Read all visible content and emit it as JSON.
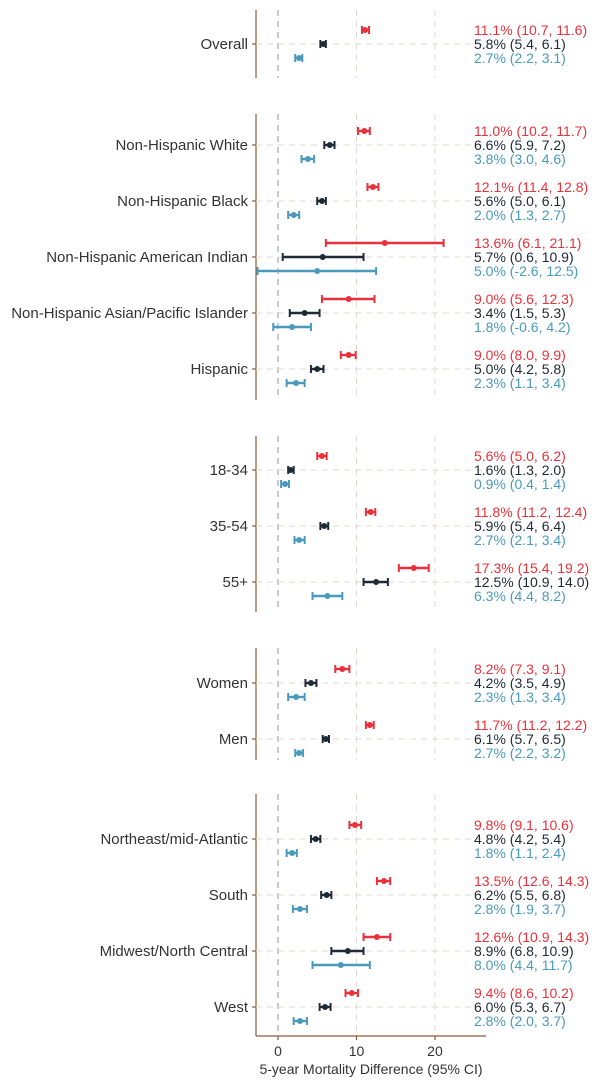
{
  "chart_data": {
    "type": "forest",
    "xlabel": "5-year Mortality Difference (95% CI)",
    "xlim": [
      -2.8,
      26.5
    ],
    "x_ticks": [
      0,
      10,
      20
    ],
    "reference_line": 0,
    "grid": true,
    "colors": {
      "red": "#e8313a",
      "dark": "#1e2a35",
      "blue": "#4a9abb"
    },
    "series_order": [
      "red",
      "dark",
      "blue"
    ],
    "panels": [
      {
        "rows": [
          {
            "label": "Overall",
            "estimates": [
              {
                "series": "red",
                "est": 11.1,
                "lo": 10.7,
                "hi": 11.6,
                "text": "11.1% (10.7, 11.6)"
              },
              {
                "series": "dark",
                "est": 5.8,
                "lo": 5.4,
                "hi": 6.1,
                "text": "5.8% (5.4, 6.1)"
              },
              {
                "series": "blue",
                "est": 2.7,
                "lo": 2.2,
                "hi": 3.1,
                "text": "2.7% (2.2, 3.1)"
              }
            ]
          }
        ]
      },
      {
        "rows": [
          {
            "label": "Non-Hispanic White",
            "estimates": [
              {
                "series": "red",
                "est": 11.0,
                "lo": 10.2,
                "hi": 11.7,
                "text": "11.0% (10.2, 11.7)"
              },
              {
                "series": "dark",
                "est": 6.6,
                "lo": 5.9,
                "hi": 7.2,
                "text": "6.6% (5.9, 7.2)"
              },
              {
                "series": "blue",
                "est": 3.8,
                "lo": 3.0,
                "hi": 4.6,
                "text": "3.8% (3.0, 4.6)"
              }
            ]
          },
          {
            "label": "Non-Hispanic Black",
            "estimates": [
              {
                "series": "red",
                "est": 12.1,
                "lo": 11.4,
                "hi": 12.8,
                "text": "12.1% (11.4, 12.8)"
              },
              {
                "series": "dark",
                "est": 5.6,
                "lo": 5.0,
                "hi": 6.1,
                "text": "5.6% (5.0, 6.1)"
              },
              {
                "series": "blue",
                "est": 2.0,
                "lo": 1.3,
                "hi": 2.7,
                "text": "2.0% (1.3, 2.7)"
              }
            ]
          },
          {
            "label": "Non-Hispanic American Indian",
            "estimates": [
              {
                "series": "red",
                "est": 13.6,
                "lo": 6.1,
                "hi": 21.1,
                "text": "13.6% (6.1, 21.1)"
              },
              {
                "series": "dark",
                "est": 5.7,
                "lo": 0.6,
                "hi": 10.9,
                "text": "5.7% (0.6, 10.9)"
              },
              {
                "series": "blue",
                "est": 5.0,
                "lo": -2.6,
                "hi": 12.5,
                "text": "5.0% (-2.6, 12.5)"
              }
            ]
          },
          {
            "label": "Non-Hispanic Asian/Pacific Islander",
            "estimates": [
              {
                "series": "red",
                "est": 9.0,
                "lo": 5.6,
                "hi": 12.3,
                "text": "9.0% (5.6, 12.3)"
              },
              {
                "series": "dark",
                "est": 3.4,
                "lo": 1.5,
                "hi": 5.3,
                "text": "3.4% (1.5, 5.3)"
              },
              {
                "series": "blue",
                "est": 1.8,
                "lo": -0.6,
                "hi": 4.2,
                "text": "1.8% (-0.6, 4.2)"
              }
            ]
          },
          {
            "label": "Hispanic",
            "estimates": [
              {
                "series": "red",
                "est": 9.0,
                "lo": 8.0,
                "hi": 9.9,
                "text": "9.0% (8.0, 9.9)"
              },
              {
                "series": "dark",
                "est": 5.0,
                "lo": 4.2,
                "hi": 5.8,
                "text": "5.0% (4.2, 5.8)"
              },
              {
                "series": "blue",
                "est": 2.3,
                "lo": 1.1,
                "hi": 3.4,
                "text": "2.3% (1.1, 3.4)"
              }
            ]
          }
        ]
      },
      {
        "rows": [
          {
            "label": "18-34",
            "estimates": [
              {
                "series": "red",
                "est": 5.6,
                "lo": 5.0,
                "hi": 6.2,
                "text": "5.6% (5.0, 6.2)"
              },
              {
                "series": "dark",
                "est": 1.6,
                "lo": 1.3,
                "hi": 2.0,
                "text": "1.6% (1.3, 2.0)"
              },
              {
                "series": "blue",
                "est": 0.9,
                "lo": 0.4,
                "hi": 1.4,
                "text": "0.9% (0.4, 1.4)"
              }
            ]
          },
          {
            "label": "35-54",
            "estimates": [
              {
                "series": "red",
                "est": 11.8,
                "lo": 11.2,
                "hi": 12.4,
                "text": "11.8% (11.2, 12.4)"
              },
              {
                "series": "dark",
                "est": 5.9,
                "lo": 5.4,
                "hi": 6.4,
                "text": "5.9% (5.4, 6.4)"
              },
              {
                "series": "blue",
                "est": 2.7,
                "lo": 2.1,
                "hi": 3.4,
                "text": "2.7% (2.1, 3.4)"
              }
            ]
          },
          {
            "label": "55+",
            "estimates": [
              {
                "series": "red",
                "est": 17.3,
                "lo": 15.4,
                "hi": 19.2,
                "text": "17.3% (15.4, 19.2)"
              },
              {
                "series": "dark",
                "est": 12.5,
                "lo": 10.9,
                "hi": 14.0,
                "text": "12.5% (10.9, 14.0)"
              },
              {
                "series": "blue",
                "est": 6.3,
                "lo": 4.4,
                "hi": 8.2,
                "text": "6.3% (4.4, 8.2)"
              }
            ]
          }
        ]
      },
      {
        "rows": [
          {
            "label": "Women",
            "estimates": [
              {
                "series": "red",
                "est": 8.2,
                "lo": 7.3,
                "hi": 9.1,
                "text": "8.2% (7.3, 9.1)"
              },
              {
                "series": "dark",
                "est": 4.2,
                "lo": 3.5,
                "hi": 4.9,
                "text": "4.2% (3.5, 4.9)"
              },
              {
                "series": "blue",
                "est": 2.3,
                "lo": 1.3,
                "hi": 3.4,
                "text": "2.3% (1.3, 3.4)"
              }
            ]
          },
          {
            "label": "Men",
            "estimates": [
              {
                "series": "red",
                "est": 11.7,
                "lo": 11.2,
                "hi": 12.2,
                "text": "11.7% (11.2, 12.2)"
              },
              {
                "series": "dark",
                "est": 6.1,
                "lo": 5.7,
                "hi": 6.5,
                "text": "6.1% (5.7, 6.5)"
              },
              {
                "series": "blue",
                "est": 2.7,
                "lo": 2.2,
                "hi": 3.2,
                "text": "2.7% (2.2, 3.2)"
              }
            ]
          }
        ]
      },
      {
        "rows": [
          {
            "label": "Northeast/mid-Atlantic",
            "estimates": [
              {
                "series": "red",
                "est": 9.8,
                "lo": 9.1,
                "hi": 10.6,
                "text": "9.8% (9.1, 10.6)"
              },
              {
                "series": "dark",
                "est": 4.8,
                "lo": 4.2,
                "hi": 5.4,
                "text": "4.8% (4.2, 5.4)"
              },
              {
                "series": "blue",
                "est": 1.8,
                "lo": 1.1,
                "hi": 2.4,
                "text": "1.8% (1.1, 2.4)"
              }
            ]
          },
          {
            "label": "South",
            "estimates": [
              {
                "series": "red",
                "est": 13.5,
                "lo": 12.6,
                "hi": 14.3,
                "text": "13.5% (12.6, 14.3)"
              },
              {
                "series": "dark",
                "est": 6.2,
                "lo": 5.5,
                "hi": 6.8,
                "text": "6.2% (5.5, 6.8)"
              },
              {
                "series": "blue",
                "est": 2.8,
                "lo": 1.9,
                "hi": 3.7,
                "text": "2.8% (1.9, 3.7)"
              }
            ]
          },
          {
            "label": "Midwest/North Central",
            "estimates": [
              {
                "series": "red",
                "est": 12.6,
                "lo": 10.9,
                "hi": 14.3,
                "text": "12.6% (10.9, 14.3)"
              },
              {
                "series": "dark",
                "est": 8.9,
                "lo": 6.8,
                "hi": 10.9,
                "text": "8.9% (6.8, 10.9)"
              },
              {
                "series": "blue",
                "est": 8.0,
                "lo": 4.4,
                "hi": 11.7,
                "text": "8.0% (4.4, 11.7)"
              }
            ]
          },
          {
            "label": "West",
            "estimates": [
              {
                "series": "red",
                "est": 9.4,
                "lo": 8.6,
                "hi": 10.2,
                "text": "9.4% (8.6, 10.2)"
              },
              {
                "series": "dark",
                "est": 6.0,
                "lo": 5.3,
                "hi": 6.7,
                "text": "6.0% (5.3, 6.7)"
              },
              {
                "series": "blue",
                "est": 2.8,
                "lo": 2.0,
                "hi": 3.7,
                "text": "2.8% (2.0, 3.7)"
              }
            ]
          }
        ]
      }
    ]
  }
}
